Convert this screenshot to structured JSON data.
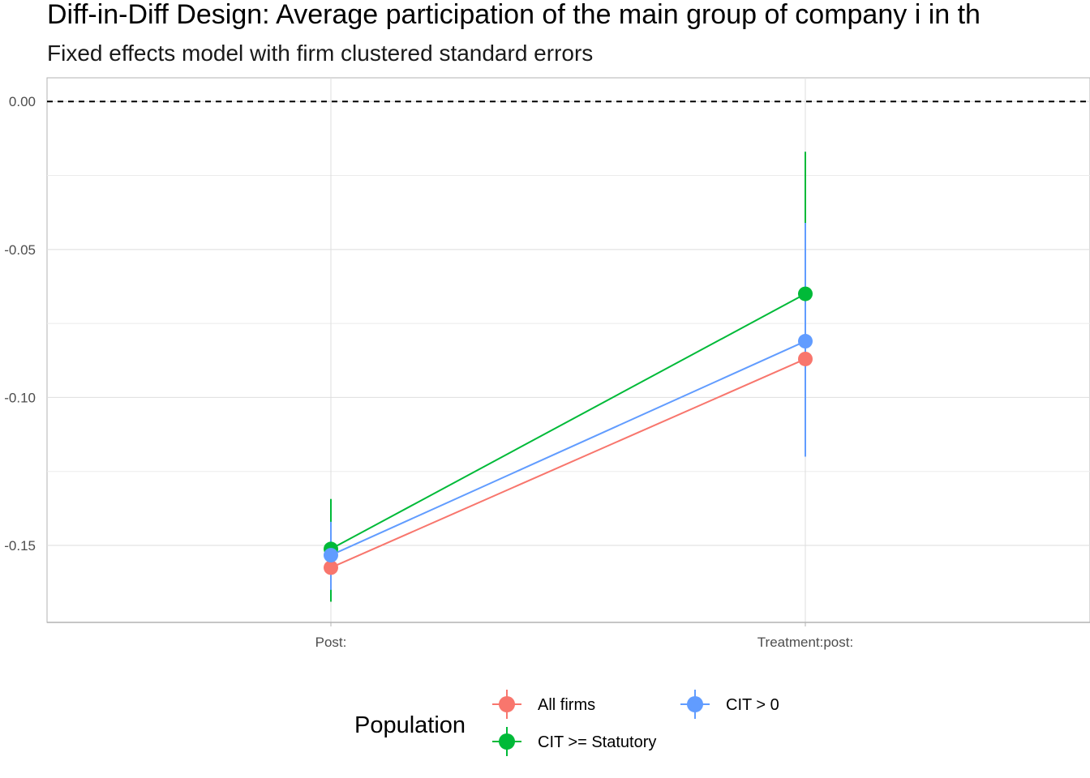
{
  "chart_data": {
    "type": "scatter",
    "title": "Diff-in-Diff Design: Average participation of the main group of company i in th",
    "subtitle": "Fixed effects model with firm clustered standard errors",
    "xlabel": "",
    "ylabel": "",
    "categories": [
      "Post:",
      "Treatment:post:"
    ],
    "ylim": [
      -0.176,
      0.008
    ],
    "yticks": [
      0.0,
      -0.05,
      -0.1,
      -0.15
    ],
    "ytick_labels": [
      "0.00",
      "-0.05",
      "-0.10",
      "-0.15"
    ],
    "reference_line": 0.0,
    "grid": true,
    "legend": {
      "title": "Population",
      "position": "bottom"
    },
    "series": [
      {
        "name": "All firms",
        "color": "#F8766D",
        "values": [
          -0.1575,
          -0.087
        ],
        "lower": [
          -0.169,
          -0.1165
        ],
        "upper": [
          -0.146,
          -0.0575
        ]
      },
      {
        "name": "CIT >= Statutory",
        "color": "#00BA38",
        "values": [
          -0.1512,
          -0.065
        ],
        "lower": [
          -0.169,
          -0.113
        ],
        "upper": [
          -0.1343,
          -0.017
        ]
      },
      {
        "name": "CIT > 0",
        "color": "#619CFF",
        "values": [
          -0.1533,
          -0.081
        ],
        "lower": [
          -0.165,
          -0.12
        ],
        "upper": [
          -0.142,
          -0.041
        ]
      }
    ]
  }
}
